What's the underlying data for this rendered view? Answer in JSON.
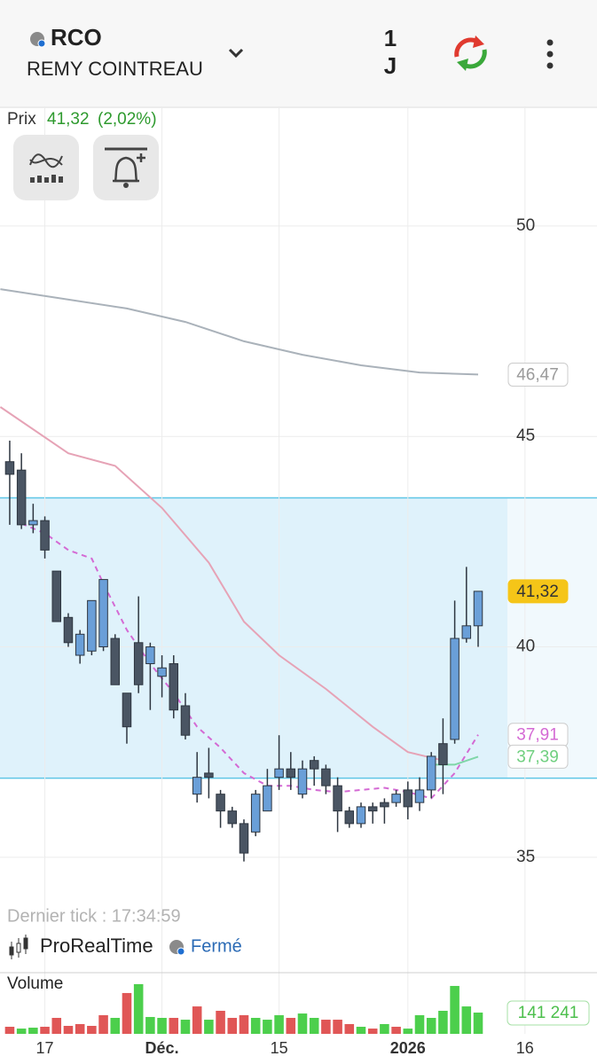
{
  "header": {
    "symbol": "RCO",
    "name": "REMY COINTREAU",
    "period_number": "1",
    "period_unit": "J",
    "price_label": "Prix",
    "price": "41,32",
    "change": "(2,02%)"
  },
  "footer": {
    "last_tick": "Dernier tick : 17:34:59",
    "source": "ProRealTime",
    "status": "Fermé"
  },
  "chart_data": {
    "type": "candlestick",
    "xlim": [
      -0.83,
      50.15
    ],
    "xticks": [
      {
        "value": 3,
        "label": "17"
      },
      {
        "value": 13,
        "label": "Déc."
      },
      {
        "value": 23,
        "label": "15"
      },
      {
        "value": 34,
        "label": "2026"
      },
      {
        "value": 44,
        "label": "16"
      }
    ],
    "ylim": [
      32.3,
      52.8
    ],
    "yticks": [
      35,
      40,
      45,
      50
    ],
    "grid": true,
    "up_color": "#6a9fd8",
    "down_color": "#4a5563",
    "open": [
      44.4,
      44.2,
      42.9,
      43.0,
      41.8,
      40.7,
      39.8,
      39.9,
      40.0,
      40.2,
      38.9,
      40.1,
      39.6,
      39.3,
      39.6,
      38.6,
      36.5,
      37.0,
      36.5,
      36.1,
      35.8,
      35.6,
      36.1,
      36.9,
      37.1,
      36.5,
      37.3,
      37.1,
      36.7,
      36.1,
      35.8,
      36.2,
      36.3,
      36.3,
      36.6,
      36.3,
      36.6,
      37.7,
      37.8,
      40.2,
      40.5
    ],
    "high": [
      44.9,
      44.6,
      43.4,
      43.1,
      41.8,
      40.8,
      40.4,
      41.1,
      41.6,
      40.3,
      38.9,
      41.2,
      40.1,
      39.8,
      39.8,
      38.9,
      37.5,
      37.6,
      36.6,
      36.2,
      35.9,
      36.6,
      37.1,
      37.9,
      37.5,
      37.3,
      37.4,
      37.2,
      36.9,
      36.2,
      36.3,
      36.3,
      36.4,
      36.6,
      36.8,
      36.9,
      37.5,
      38.3,
      41.1,
      41.9,
      41.32
    ],
    "low": [
      42.9,
      42.8,
      42.7,
      42.1,
      40.6,
      40.0,
      39.6,
      39.8,
      39.9,
      39.1,
      37.7,
      38.9,
      38.5,
      38.8,
      38.3,
      37.8,
      36.3,
      36.4,
      35.7,
      35.7,
      34.9,
      35.5,
      36.1,
      36.6,
      36.6,
      36.4,
      36.7,
      36.5,
      35.6,
      35.7,
      35.7,
      35.8,
      35.8,
      36.2,
      35.9,
      36.1,
      36.4,
      36.5,
      37.7,
      40.1,
      40.0
    ],
    "close": [
      44.1,
      42.9,
      43.0,
      42.3,
      40.6,
      40.1,
      40.3,
      41.1,
      41.6,
      39.1,
      38.1,
      39.1,
      40.0,
      39.5,
      38.5,
      37.9,
      36.9,
      36.9,
      36.1,
      35.8,
      35.1,
      36.5,
      36.7,
      37.1,
      36.9,
      37.1,
      37.1,
      36.7,
      36.1,
      35.8,
      36.2,
      36.1,
      36.2,
      36.5,
      36.2,
      36.6,
      37.4,
      37.2,
      40.2,
      40.5,
      41.32
    ],
    "zone": {
      "low": 36.88,
      "high": 43.54,
      "color": "#dff2fb"
    },
    "lines": [
      {
        "color": "#aab2ba",
        "dashed": false,
        "x": [
          -0.8,
          10,
          15,
          20,
          25,
          30,
          35,
          40
        ],
        "values": [
          48.5,
          48.04,
          47.72,
          47.26,
          46.94,
          46.69,
          46.52,
          46.47
        ]
      },
      {
        "color": "#e6a3b6",
        "dashed": false,
        "x": [
          -0.8,
          5,
          9,
          13,
          17,
          20,
          23,
          27,
          31,
          34,
          37
        ],
        "values": [
          45.7,
          44.6,
          44.3,
          43.3,
          42.0,
          40.6,
          39.8,
          39.0,
          38.1,
          37.5,
          37.3
        ]
      },
      {
        "color": "#d46ad4",
        "dashed": true,
        "x": [
          1,
          3,
          5,
          7,
          8,
          10,
          12,
          14,
          16,
          18,
          20,
          22,
          24,
          26,
          28,
          30,
          32,
          34,
          36,
          38,
          40
        ],
        "values": [
          42.93,
          42.7,
          42.3,
          42.1,
          41.5,
          40.4,
          39.6,
          38.9,
          38.1,
          37.6,
          37.0,
          36.7,
          36.7,
          36.6,
          36.55,
          36.6,
          36.65,
          36.55,
          36.4,
          37.0,
          37.91
        ]
      },
      {
        "color": "#7fd6a8",
        "dashed": false,
        "x": [
          36,
          38,
          40
        ],
        "values": [
          37.2,
          37.2,
          37.39
        ]
      }
    ],
    "price_labels": [
      {
        "value": 46.47,
        "label": "46,47",
        "color": "#9a9a9a",
        "fill": "#ffffff"
      },
      {
        "value": 41.32,
        "label": "41,32",
        "color": "#333333",
        "fill": "#f5c518"
      },
      {
        "value": 37.91,
        "label": "37,91",
        "color": "#d46ad4",
        "fill": "#ffffff"
      },
      {
        "value": 37.39,
        "label": "37,39",
        "color": "#6fcf7f",
        "fill": "#ffffff"
      }
    ],
    "volume": {
      "title": "Volume",
      "ylim": [
        0,
        406000
      ],
      "values": [
        47000,
        35000,
        41000,
        47000,
        106000,
        53000,
        65000,
        53000,
        124000,
        106000,
        271000,
        330000,
        112000,
        106000,
        106000,
        94000,
        182000,
        94000,
        153000,
        106000,
        124000,
        106000,
        94000,
        124000,
        106000,
        135000,
        106000,
        94000,
        94000,
        65000,
        47000,
        35000,
        65000,
        47000,
        35000,
        124000,
        106000,
        153000,
        318000,
        182000,
        141241
      ],
      "colors": [
        "#e05656",
        "#4ccf4c",
        "#4ccf4c",
        "#e05656",
        "#e05656",
        "#e05656",
        "#e05656",
        "#e05656",
        "#e05656",
        "#4ccf4c",
        "#e05656",
        "#4ccf4c",
        "#4ccf4c",
        "#4ccf4c",
        "#e05656",
        "#4ccf4c",
        "#e05656",
        "#4ccf4c",
        "#e05656",
        "#e05656",
        "#e05656",
        "#4ccf4c",
        "#4ccf4c",
        "#4ccf4c",
        "#e05656",
        "#4ccf4c",
        "#4ccf4c",
        "#e05656",
        "#e05656",
        "#e05656",
        "#4ccf4c",
        "#e05656",
        "#4ccf4c",
        "#e05656",
        "#4ccf4c",
        "#4ccf4c",
        "#4ccf4c",
        "#4ccf4c",
        "#4ccf4c",
        "#4ccf4c",
        "#4ccf4c"
      ],
      "last_label": {
        "value": 141241,
        "label": "141 241"
      }
    }
  }
}
